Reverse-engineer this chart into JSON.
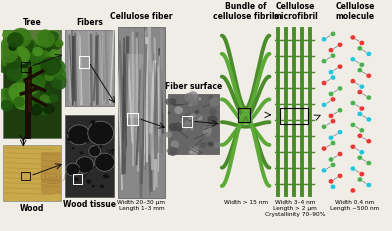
{
  "bg_color": "#f0ede6",
  "green": "#4a8c2a",
  "green2": "#5aaa35",
  "dark_gray": "#555555",
  "med_gray": "#888888",
  "light_gray": "#aaaaaa",
  "atom_C": "#4caf50",
  "atom_O": "#e53935",
  "atom_H": "#26c6da",
  "arrow_color": "#111111",
  "labels_top": [
    "Tree",
    "Fibers",
    "Cellulose fiber",
    "Bundle of\ncellulose fibrils",
    "Cellulose\nmicrofibril",
    "Cellulose\nmolecule"
  ],
  "labels_bottom": [
    "Wood",
    "Wood tissue",
    "Width 20–30 μm\nLength 1–3 mm",
    "Width > 15 nm",
    "Width 3–4 nm\nLength > 2 μm\nCrystallinity 70–90%",
    "Width 0.4 nm\nLength ~500 nm"
  ],
  "fiber_surface_label": "Fiber surface",
  "label_fontsize": 5.5,
  "small_fontsize": 4.2
}
